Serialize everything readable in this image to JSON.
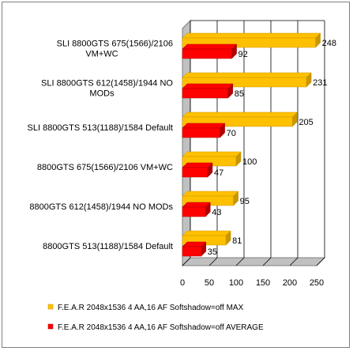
{
  "chart_data": {
    "type": "bar",
    "orientation": "horizontal",
    "categories": [
      [
        "SLI 8800GTS 675(1566)/2106",
        "VM+WC"
      ],
      [
        "SLI 8800GTS 612(1458)/1944 NO",
        "MODs"
      ],
      [
        "SLI 8800GTS 513(1188)/1584 Default"
      ],
      [
        "8800GTS 675(1566)/2106 VM+WC"
      ],
      [
        "8800GTS 612(1458)/1944 NO MODs"
      ],
      [
        "8800GTS 513(1188)/1584 Default"
      ]
    ],
    "series": [
      {
        "name": "F.E.A.R 2048x1536  4 AA,16 AF Softshadow=off  MAX",
        "values": [
          248,
          231,
          205,
          100,
          95,
          81
        ],
        "color": "#FFC000",
        "shade": "#C89600"
      },
      {
        "name": "F.E.A.R 2048x1536 4 AA,16 AF Softshadow=off  AVERAGE",
        "values": [
          92,
          85,
          70,
          47,
          43,
          35
        ],
        "color": "#FF0000",
        "shade": "#B00000"
      }
    ],
    "xlim": [
      0,
      250
    ],
    "xticks": [
      0,
      50,
      100,
      150,
      200,
      250
    ],
    "grid": true,
    "legend": "bottom",
    "title": "",
    "xlabel": "",
    "ylabel": ""
  }
}
